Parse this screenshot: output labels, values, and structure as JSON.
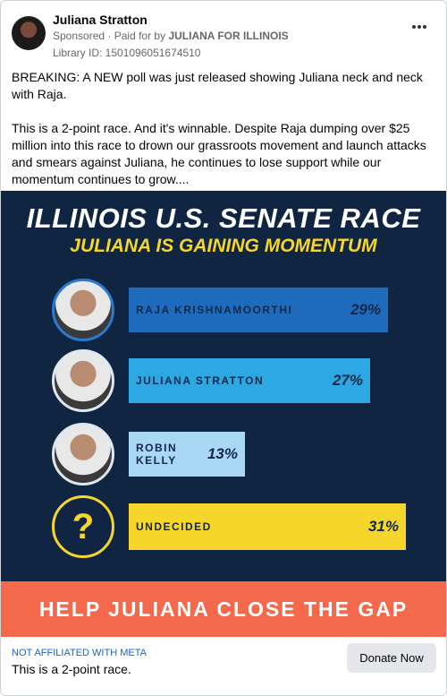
{
  "post": {
    "author": "Juliana Stratton",
    "sponsored": "Sponsored",
    "paid_for_label": "Paid for by",
    "payer": "JULIANA FOR ILLINOIS",
    "library_id": "Library ID: 1501096051674510",
    "paragraphs": [
      "BREAKING: A NEW poll was just released showing Juliana neck and neck with Raja.",
      "This is a 2-point race. And it's winnable. Despite Raja dumping over $25 million into this race to drown our grassroots movement and launch attacks and smears against Juliana, he continues to lose support while our momentum continues to grow...."
    ]
  },
  "chart_data": {
    "type": "bar",
    "orientation": "horizontal",
    "title": "ILLINOIS U.S. SENATE RACE",
    "subtitle": "JULIANA IS GAINING MOMENTUM",
    "categories": [
      "RAJA KRISHNAMOORTHI",
      "JULIANA STRATTON",
      "ROBIN KELLY",
      "UNDECIDED"
    ],
    "values": [
      29,
      27,
      13,
      31
    ],
    "value_labels": [
      "29%",
      "27%",
      "13%",
      "31%"
    ],
    "colors": [
      "#1e6bbd",
      "#2ea8e2",
      "#a8d8f3",
      "#f6d62b"
    ],
    "undecided_icon": "?",
    "banner": "HELP JULIANA CLOSE THE GAP"
  },
  "footer": {
    "disclaimer": "NOT AFFILIATED WITH META",
    "headline": "This is a 2-point race.",
    "button": "Donate Now"
  }
}
